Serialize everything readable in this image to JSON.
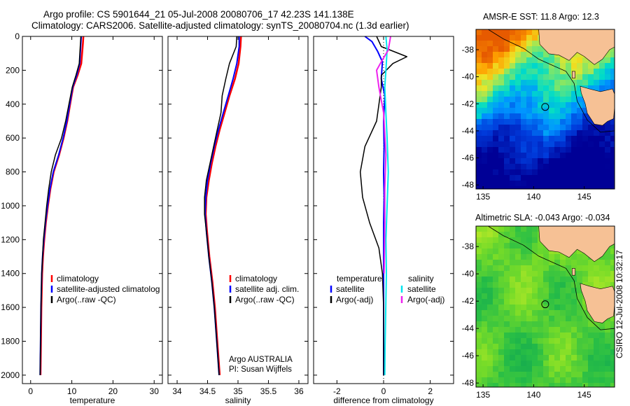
{
  "titles": {
    "line1": "Argo profile: CS 5901644_21 05-Jul-2008 20080706_17 42.23S 141.138E",
    "line2": "Climatology: CARS2006. Satellite-adjusted climatology: synTS_20080704.nc (1.3d earlier)",
    "sst_title": "AMSR-E SST: 11.8 Argo: 12.3",
    "sla_title": "Altimetric SLA: -0.043 Argo: -0.034",
    "side_stamp": "CSIRO 12-Jul-2008 10:32:17"
  },
  "colors": {
    "climatology": "#ff0000",
    "satellite": "#0000ff",
    "argo": "#000000",
    "salinity_satellite": "#00e5ee",
    "salinity_argo": "#ee22ee",
    "land": "#f6c195"
  },
  "chart_data": [
    {
      "type": "line",
      "id": "temperature",
      "xlabel": "temperature",
      "xlim": [
        -2,
        32
      ],
      "ylim": [
        2050,
        0
      ],
      "xticks": [
        0,
        10,
        20,
        30
      ],
      "yticks": [
        0,
        200,
        400,
        600,
        800,
        1000,
        1200,
        1400,
        1600,
        1800,
        2000
      ],
      "legend": [
        "climatology",
        "satellite-adjusted climatolog",
        "Argo(..raw -QC)"
      ],
      "series": [
        {
          "name": "climatology",
          "color": "#ff0000",
          "width": 2.6,
          "x": [
            12.8,
            12.7,
            12.3,
            11.4,
            10.3,
            9.6,
            8.9,
            8.0,
            6.9,
            5.6,
            4.8,
            4.2,
            3.7,
            3.3,
            3.0,
            2.8,
            2.6,
            2.5,
            2.4
          ],
          "y": [
            0,
            40,
            160,
            230,
            300,
            400,
            500,
            600,
            700,
            800,
            900,
            1000,
            1100,
            1200,
            1300,
            1400,
            1600,
            1800,
            2000
          ]
        },
        {
          "name": "satellite-adjusted climatology",
          "color": "#0000ff",
          "width": 2,
          "x": [
            12.3,
            12.2,
            11.9,
            11.2,
            10.2,
            9.5,
            8.8,
            7.9,
            6.8,
            5.5,
            4.7,
            4.1,
            3.6,
            3.2,
            2.9,
            2.7,
            2.5,
            2.4,
            2.3
          ],
          "y": [
            0,
            40,
            160,
            230,
            300,
            400,
            500,
            600,
            700,
            800,
            900,
            1000,
            1100,
            1200,
            1300,
            1400,
            1600,
            1800,
            2000
          ]
        },
        {
          "name": "Argo(..raw -QC)",
          "color": "#000000",
          "width": 1.5,
          "x": [
            12.2,
            12.1,
            11.8,
            11.0,
            10.1,
            9.3,
            8.5,
            7.5,
            6.0,
            5.0,
            4.4,
            3.9,
            3.5,
            3.1,
            2.9,
            2.7,
            2.5,
            2.4,
            2.3
          ],
          "y": [
            0,
            40,
            160,
            230,
            300,
            400,
            500,
            600,
            700,
            800,
            900,
            1000,
            1100,
            1200,
            1300,
            1400,
            1600,
            1800,
            2000
          ]
        }
      ]
    },
    {
      "type": "line",
      "id": "salinity",
      "xlabel": "salinity",
      "xlim": [
        33.85,
        36.15
      ],
      "ylim": [
        2050,
        0
      ],
      "xticks": [
        34,
        34.5,
        35,
        35.5,
        36
      ],
      "legend": [
        "climatology",
        "satellite adj. clim.",
        "Argo(..raw -QC)"
      ],
      "annotation": [
        "Argo AUSTRALIA",
        "PI: Susan Wijffels"
      ],
      "series": [
        {
          "name": "climatology",
          "color": "#ff0000",
          "width": 2.6,
          "x": [
            35.05,
            35.04,
            35.01,
            34.95,
            34.86,
            34.78,
            34.7,
            34.63,
            34.57,
            34.52,
            34.48,
            34.47,
            34.49,
            34.53,
            34.58,
            34.62,
            34.66,
            34.7
          ],
          "y": [
            0,
            60,
            160,
            250,
            350,
            450,
            550,
            650,
            750,
            850,
            950,
            1050,
            1150,
            1300,
            1450,
            1600,
            1800,
            2000
          ]
        },
        {
          "name": "satellite adj. clim.",
          "color": "#0000ff",
          "width": 2,
          "x": [
            35.02,
            35.02,
            34.98,
            34.92,
            34.84,
            34.76,
            34.68,
            34.61,
            34.55,
            34.5,
            34.47,
            34.46,
            34.48,
            34.52,
            34.57,
            34.61,
            34.65,
            34.69
          ],
          "y": [
            0,
            60,
            160,
            250,
            350,
            450,
            550,
            650,
            750,
            850,
            950,
            1050,
            1150,
            1300,
            1450,
            1600,
            1800,
            2000
          ]
        },
        {
          "name": "Argo(..raw -QC)",
          "color": "#000000",
          "width": 1.5,
          "x": [
            34.98,
            34.97,
            34.86,
            34.8,
            34.74,
            34.72,
            34.66,
            34.6,
            34.54,
            34.48,
            34.45,
            34.45,
            34.48,
            34.52,
            34.57,
            34.61,
            34.65,
            34.69
          ],
          "y": [
            0,
            60,
            160,
            250,
            350,
            450,
            550,
            650,
            750,
            850,
            950,
            1050,
            1150,
            1300,
            1450,
            1600,
            1800,
            2000
          ]
        }
      ]
    },
    {
      "type": "line",
      "id": "difference",
      "xlabel": "difference from climatology",
      "xlim": [
        -3,
        3
      ],
      "ylim": [
        2050,
        0
      ],
      "xticks": [
        -2,
        0,
        2
      ],
      "legend_left_header": "temperature",
      "legend_right_header": "salinity",
      "legend_left": [
        "satellite",
        "Argo(-adj)"
      ],
      "legend_right": [
        "satellite",
        "Argo(-adj)"
      ],
      "series": [
        {
          "name": "temperature satellite",
          "color": "#0000ff",
          "width": 2,
          "x": [
            -0.8,
            -0.5,
            -0.25,
            -0.05,
            -0.1,
            0.05,
            0.0,
            0.02,
            0.0,
            0.02,
            0.0,
            0.0,
            0.0,
            0.0,
            0.0,
            0.0
          ],
          "y": [
            0,
            30,
            90,
            150,
            250,
            350,
            500,
            650,
            800,
            950,
            1100,
            1250,
            1400,
            1600,
            1800,
            2000
          ]
        },
        {
          "name": "temperature Argo(-adj)",
          "color": "#000000",
          "width": 1.5,
          "x": [
            -0.3,
            -0.1,
            1.0,
            0.4,
            -0.1,
            -0.1,
            -0.3,
            -0.8,
            -1.0,
            -0.9,
            -0.6,
            -0.2,
            -0.05,
            0.0,
            0.0,
            0.0
          ],
          "y": [
            0,
            60,
            120,
            160,
            230,
            300,
            500,
            650,
            800,
            950,
            1100,
            1250,
            1400,
            1600,
            1800,
            2000
          ]
        },
        {
          "name": "salinity satellite",
          "color": "#00e5ee",
          "width": 2,
          "x": [
            0.1,
            0.15,
            0.1,
            0.05,
            0.1,
            0.15,
            0.2,
            0.15,
            0.1,
            0.12,
            0.1,
            0.08,
            0.06,
            0.05,
            0.05
          ],
          "y": [
            0,
            80,
            200,
            300,
            450,
            600,
            800,
            1000,
            1200,
            1400,
            1550,
            1700,
            1850,
            2000,
            2000
          ]
        },
        {
          "name": "salinity Argo(-adj)",
          "color": "#ee22ee",
          "width": 2,
          "x": [
            0.3,
            0.2,
            -0.1,
            -0.3,
            -0.2,
            0.0,
            0.1,
            0.05,
            0.05,
            0.04,
            0.03,
            0.02
          ],
          "y": [
            0,
            80,
            150,
            200,
            300,
            450,
            700,
            900,
            1100,
            1250,
            1350,
            1400
          ]
        }
      ]
    },
    {
      "type": "heatmap",
      "id": "sst-map",
      "title": "AMSR-E SST: 11.8 Argo: 12.3",
      "xticks": [
        135,
        140,
        145
      ],
      "yticks": [
        -38,
        -40,
        -42,
        -44,
        -46,
        -48
      ],
      "xlim": [
        134.3,
        148.0
      ],
      "ylim": [
        -48.3,
        -36.5
      ],
      "marker": {
        "lon": 141.14,
        "lat": -42.23
      }
    },
    {
      "type": "heatmap",
      "id": "sla-map",
      "title": "Altimetric SLA: -0.043 Argo: -0.034",
      "xticks": [
        135,
        140,
        145
      ],
      "yticks": [
        -38,
        -40,
        -42,
        -44,
        -46,
        -48
      ],
      "xlim": [
        134.3,
        148.0
      ],
      "ylim": [
        -48.3,
        -36.5
      ],
      "marker": {
        "lon": 141.14,
        "lat": -42.23
      }
    }
  ]
}
